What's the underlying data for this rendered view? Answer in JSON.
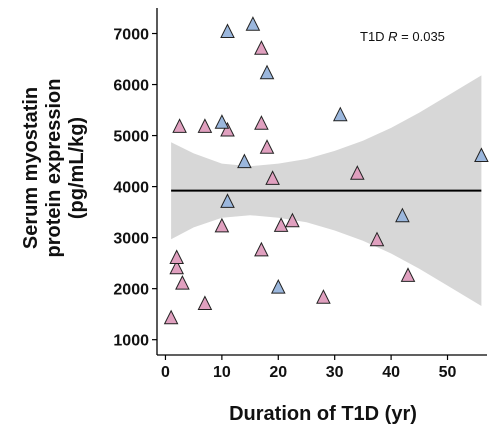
{
  "chart_data": {
    "type": "scatter",
    "title": "",
    "xlabel": "Duration of T1D (yr)",
    "ylabel_lines": [
      "Serum myostatin",
      "protein expression",
      "(pg/mL/kg)"
    ],
    "xlim": [
      -1.5,
      57
    ],
    "ylim": [
      700,
      7500
    ],
    "x_ticks": [
      0,
      10,
      20,
      30,
      40,
      50
    ],
    "y_ticks": [
      1000,
      2000,
      3000,
      4000,
      5000,
      6000,
      7000
    ],
    "annotation": {
      "prefix": "T1D ",
      "italic": "R",
      "suffix": " = 0.035"
    },
    "grid": false,
    "legend": "none",
    "colors": {
      "group_a_fill": "#e0a0bf",
      "group_b_fill": "#9bb7dd",
      "marker_stroke": "#222222",
      "fit_line": "#000000",
      "confidence_band": "#d7d7d7"
    },
    "series": [
      {
        "group": "a",
        "points": [
          [
            1,
            1420
          ],
          [
            2,
            2400
          ],
          [
            2,
            2600
          ],
          [
            3,
            2100
          ],
          [
            2.5,
            5170
          ],
          [
            7,
            1700
          ],
          [
            7,
            5170
          ],
          [
            10,
            3220
          ],
          [
            11,
            5100
          ],
          [
            17,
            6700
          ],
          [
            17,
            2750
          ],
          [
            17,
            5230
          ],
          [
            18,
            4760
          ],
          [
            19,
            4150
          ],
          [
            20.5,
            3230
          ],
          [
            22.5,
            3320
          ],
          [
            28,
            1820
          ],
          [
            34,
            4250
          ],
          [
            37.5,
            2950
          ],
          [
            43,
            2250
          ]
        ]
      },
      {
        "group": "b",
        "points": [
          [
            10,
            5250
          ],
          [
            11,
            7030
          ],
          [
            11,
            3700
          ],
          [
            14,
            4480
          ],
          [
            15.5,
            7170
          ],
          [
            18,
            6220
          ],
          [
            20,
            2020
          ],
          [
            31,
            5400
          ],
          [
            42,
            3420
          ],
          [
            56,
            4600
          ]
        ]
      }
    ],
    "fit": {
      "x": [
        1,
        56
      ],
      "y": [
        3920,
        3920
      ]
    },
    "band": {
      "x": [
        1,
        5,
        10,
        15,
        20,
        25,
        30,
        35,
        40,
        45,
        50,
        56
      ],
      "upper": [
        4870,
        4650,
        4450,
        4400,
        4450,
        4540,
        4700,
        4900,
        5150,
        5450,
        5780,
        6180
      ],
      "lower": [
        2970,
        3200,
        3390,
        3440,
        3390,
        3300,
        3140,
        2940,
        2690,
        2390,
        2060,
        1660
      ]
    }
  }
}
